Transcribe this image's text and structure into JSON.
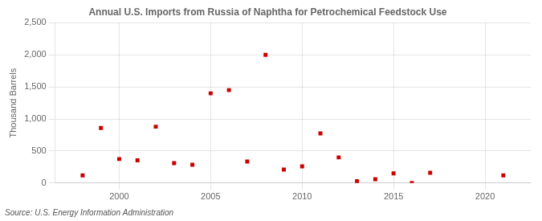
{
  "chart_data": {
    "type": "scatter",
    "title": "Annual U.S. Imports from Russia of Naphtha for Petrochemical Feedstock Use",
    "ylabel": "Thousand Barrels",
    "annotation": "Source: U.S. Energy Information Administration",
    "x": [
      1998,
      1999,
      2000,
      2001,
      2002,
      2003,
      2004,
      2005,
      2006,
      2007,
      2008,
      2009,
      2010,
      2011,
      2012,
      2013,
      2014,
      2015,
      2016,
      2017,
      2021
    ],
    "values": [
      120,
      860,
      375,
      355,
      880,
      310,
      285,
      1400,
      1450,
      335,
      2000,
      210,
      260,
      775,
      400,
      30,
      60,
      150,
      0,
      160,
      120
    ],
    "color": "#cc0000",
    "marker": "square",
    "xlim": [
      1996.5,
      2022.5
    ],
    "xticks": [
      2000,
      2005,
      2010,
      2015,
      2020
    ],
    "ylim": [
      0,
      2500
    ],
    "yticks": [
      0,
      500,
      {
        "value": 1000,
        "label": "1,000"
      },
      {
        "value": 1500,
        "label": "1,500"
      },
      {
        "value": 2000,
        "label": "2,000"
      },
      {
        "value": 2500,
        "label": "2,500"
      }
    ],
    "grid": true
  }
}
